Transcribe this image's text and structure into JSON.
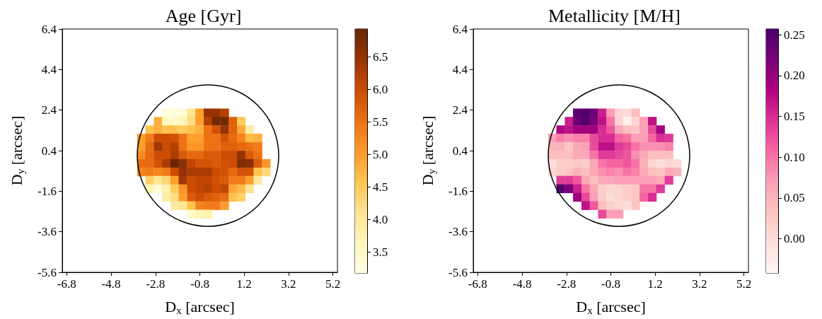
{
  "chart_data": [
    {
      "type": "scatter",
      "title": "Age [Gyr]",
      "xlabel": "D$_{x}$ [arcsec]",
      "ylabel": "D$_{y}$ [arcsec]",
      "marker": "square",
      "xlim": [
        -7.0,
        5.4
      ],
      "ylim": [
        -5.6,
        6.4
      ],
      "xticks": [
        -6.8,
        -4.8,
        -2.8,
        -0.8,
        1.2,
        3.2,
        5.2
      ],
      "yticks": [
        -5.6,
        -3.6,
        -1.6,
        0.4,
        2.4,
        4.4,
        6.4
      ],
      "clim": [
        3.18,
        6.93
      ],
      "cticks": [
        {
          "value": 3.5,
          "label": "3.5"
        },
        {
          "value": 4,
          "label": "4.0"
        },
        {
          "value": 4.5,
          "label": "4.5"
        },
        {
          "value": 5,
          "label": "5.0"
        },
        {
          "value": 5.5,
          "label": "5.5"
        },
        {
          "value": 6,
          "label": "6.0"
        },
        {
          "value": 6.5,
          "label": "6.5"
        }
      ],
      "series": [
        {
          "type": "scatter",
          "x": [
            -2.31,
            -1.93,
            -1.56,
            -1.18,
            -0.81,
            -0.43,
            -0.06,
            0.32,
            -2.68,
            -2.31,
            -1.93,
            -1.56,
            -1.18,
            -0.81,
            -0.43,
            -0.06,
            0.32,
            0.69,
            1.07,
            -3.06,
            -2.68,
            -2.31,
            -1.93,
            -1.56,
            -1.18,
            -0.81,
            -0.43,
            -0.06,
            0.32,
            0.69,
            1.07,
            1.44,
            -3.43,
            -3.06,
            -2.68,
            -2.31,
            -1.93,
            -1.56,
            -1.18,
            -0.81,
            -0.43,
            -0.06,
            0.32,
            0.69,
            1.07,
            1.44,
            1.82,
            -3.43,
            -3.06,
            -2.68,
            -2.31,
            -1.93,
            -1.56,
            -1.18,
            -0.81,
            -0.43,
            -0.06,
            0.32,
            0.69,
            1.07,
            1.44,
            1.82,
            -3.43,
            -3.06,
            -2.68,
            -2.31,
            -1.93,
            -1.56,
            -1.18,
            -0.81,
            -0.43,
            -0.06,
            0.32,
            0.69,
            1.07,
            1.44,
            1.82,
            -3.43,
            -3.06,
            -2.68,
            -2.31,
            -1.93,
            -1.56,
            -1.18,
            -0.81,
            -0.43,
            -0.06,
            0.32,
            0.69,
            1.07,
            1.44,
            1.82,
            2.19,
            -3.43,
            -3.06,
            -2.68,
            -2.31,
            -1.93,
            -1.56,
            -1.18,
            -0.81,
            -0.43,
            -0.06,
            0.32,
            0.69,
            1.07,
            1.44,
            1.82,
            2.19,
            -3.06,
            -2.68,
            -2.31,
            -1.93,
            -1.56,
            -1.18,
            -0.81,
            -0.43,
            -0.06,
            0.32,
            0.69,
            1.07,
            1.44,
            1.82,
            -3.06,
            -2.68,
            -2.31,
            -1.93,
            -1.56,
            -1.18,
            -0.81,
            -0.43,
            -0.06,
            0.32,
            0.69,
            1.07,
            1.44,
            -2.31,
            -1.93,
            -1.56,
            -1.18,
            -0.81,
            -0.43,
            -0.06,
            0.32,
            0.69,
            1.07,
            -1.93,
            -1.56,
            -1.18,
            -0.81,
            -0.43,
            -0.06,
            0.32,
            -1.18,
            -0.81,
            -0.43
          ],
          "values": [
            2.26,
            2.26,
            2.26,
            2.26,
            2.26,
            2.26,
            2.26,
            2.26,
            1.85,
            1.85,
            1.85,
            1.85,
            1.85,
            1.85,
            1.85,
            1.85,
            1.85,
            1.85,
            1.85,
            1.43,
            1.43,
            1.43,
            1.43,
            1.43,
            1.43,
            1.43,
            1.43,
            1.43,
            1.43,
            1.43,
            1.43,
            1.43,
            1.02,
            1.02,
            1.02,
            1.02,
            1.02,
            1.02,
            1.02,
            1.02,
            1.02,
            1.02,
            1.02,
            1.02,
            1.02,
            1.02,
            1.02,
            0.6,
            0.6,
            0.6,
            0.6,
            0.6,
            0.6,
            0.6,
            0.6,
            0.6,
            0.6,
            0.6,
            0.6,
            0.6,
            0.6,
            0.6,
            0.18,
            0.18,
            0.18,
            0.18,
            0.18,
            0.18,
            0.18,
            0.18,
            0.18,
            0.18,
            0.18,
            0.18,
            0.18,
            0.18,
            0.18,
            -0.23,
            -0.23,
            -0.23,
            -0.23,
            -0.23,
            -0.23,
            -0.23,
            -0.23,
            -0.23,
            -0.23,
            -0.23,
            -0.23,
            -0.23,
            -0.23,
            -0.23,
            -0.23,
            -0.65,
            -0.65,
            -0.65,
            -0.65,
            -0.65,
            -0.65,
            -0.65,
            -0.65,
            -0.65,
            -0.65,
            -0.65,
            -0.65,
            -0.65,
            -0.65,
            -0.65,
            -0.65,
            -1.06,
            -1.06,
            -1.06,
            -1.06,
            -1.06,
            -1.06,
            -1.06,
            -1.06,
            -1.06,
            -1.06,
            -1.06,
            -1.06,
            -1.06,
            -1.06,
            -1.48,
            -1.48,
            -1.48,
            -1.48,
            -1.48,
            -1.48,
            -1.48,
            -1.48,
            -1.48,
            -1.48,
            -1.48,
            -1.48,
            -1.48,
            -1.9,
            -1.9,
            -1.9,
            -1.9,
            -1.9,
            -1.9,
            -1.9,
            -1.9,
            -1.9,
            -1.9,
            -2.31,
            -2.31,
            -2.31,
            -2.31,
            -2.31,
            -2.31,
            -2.31,
            -2.73,
            -2.73,
            -2.73
          ],
          "cvalues": [
            3.3,
            3.3,
            3.4,
            4.1,
            5.0,
            6.5,
            6.5,
            6.2,
            4.8,
            3.6,
            3.5,
            3.7,
            4.2,
            5.0,
            6.2,
            6.8,
            6.8,
            5.7,
            4.5,
            4.6,
            4.8,
            4.6,
            4.6,
            4.5,
            4.6,
            4.8,
            5.5,
            5.9,
            6.5,
            5.7,
            4.9,
            3.9,
            5.0,
            5.4,
            6.0,
            6.0,
            5.9,
            5.5,
            5.0,
            5.0,
            5.5,
            5.5,
            5.9,
            5.6,
            5.3,
            4.7,
            4.8,
            5.0,
            5.6,
            6.4,
            6.0,
            6.2,
            5.5,
            5.1,
            5.1,
            5.5,
            5.5,
            5.7,
            5.7,
            5.6,
            5.5,
            5.4,
            5.2,
            5.6,
            6.0,
            6.0,
            6.3,
            5.8,
            5.6,
            5.6,
            5.8,
            5.8,
            6.0,
            6.0,
            6.5,
            5.8,
            5.5,
            5.6,
            5.6,
            5.9,
            6.3,
            6.9,
            6.6,
            6.1,
            5.9,
            5.9,
            5.8,
            5.9,
            6.0,
            6.7,
            6.6,
            5.8,
            5.1,
            5.3,
            5.4,
            5.3,
            5.4,
            6.0,
            6.5,
            6.3,
            6.3,
            6.3,
            6.0,
            5.9,
            5.6,
            5.9,
            5.9,
            4.6,
            4.3,
            4.4,
            4.1,
            4.3,
            5.0,
            6.4,
            6.0,
            6.1,
            6.1,
            5.9,
            5.8,
            5.4,
            5.4,
            5.0,
            3.9,
            3.7,
            3.4,
            3.8,
            4.5,
            5.1,
            6.0,
            6.1,
            6.2,
            6.0,
            6.1,
            4.9,
            4.7,
            4.1,
            3.9,
            4.2,
            5.0,
            5.8,
            6.0,
            5.8,
            5.7,
            5.6,
            4.6,
            4.4,
            3.9,
            4.1,
            4.6,
            5.3,
            5.4,
            5.4,
            5.0,
            3.5,
            3.7,
            3.8
          ]
        }
      ]
    },
    {
      "type": "scatter",
      "title": "Metallicity [M/H]",
      "xlabel": "D$_{x}$ [arcsec]",
      "ylabel": "D$_{y}$ [arcsec]",
      "marker": "square",
      "xlim": [
        -7.0,
        5.4
      ],
      "ylim": [
        -5.6,
        6.4
      ],
      "xticks": [
        -6.8,
        -4.8,
        -2.8,
        -0.8,
        1.2,
        3.2,
        5.2
      ],
      "yticks": [
        -5.6,
        -3.6,
        -1.6,
        0.4,
        2.4,
        4.4,
        6.4
      ],
      "clim": [
        -0.042,
        0.257
      ],
      "cticks": [
        {
          "value": 0,
          "label": "0.00"
        },
        {
          "value": 0.05,
          "label": "0.05"
        },
        {
          "value": 0.1,
          "label": "0.10"
        },
        {
          "value": 0.15,
          "label": "0.15"
        },
        {
          "value": 0.2,
          "label": "0.20"
        },
        {
          "value": 0.25,
          "label": "0.25"
        }
      ],
      "series": [
        {
          "type": "scatter",
          "x": [
            -2.31,
            -1.93,
            -1.56,
            -1.18,
            -0.81,
            -0.43,
            -0.06,
            0.32,
            -2.68,
            -2.31,
            -1.93,
            -1.56,
            -1.18,
            -0.81,
            -0.43,
            -0.06,
            0.32,
            0.69,
            1.07,
            -3.06,
            -2.68,
            -2.31,
            -1.93,
            -1.56,
            -1.18,
            -0.81,
            -0.43,
            -0.06,
            0.32,
            0.69,
            1.07,
            1.44,
            -3.43,
            -3.06,
            -2.68,
            -2.31,
            -1.93,
            -1.56,
            -1.18,
            -0.81,
            -0.43,
            -0.06,
            0.32,
            0.69,
            1.07,
            1.44,
            1.82,
            -3.43,
            -3.06,
            -2.68,
            -2.31,
            -1.93,
            -1.56,
            -1.18,
            -0.81,
            -0.43,
            -0.06,
            0.32,
            0.69,
            1.07,
            1.44,
            1.82,
            -3.43,
            -3.06,
            -2.68,
            -2.31,
            -1.93,
            -1.56,
            -1.18,
            -0.81,
            -0.43,
            -0.06,
            0.32,
            0.69,
            1.07,
            1.44,
            1.82,
            -3.43,
            -3.06,
            -2.68,
            -2.31,
            -1.93,
            -1.56,
            -1.18,
            -0.81,
            -0.43,
            -0.06,
            0.32,
            0.69,
            1.07,
            1.44,
            1.82,
            2.19,
            -3.43,
            -3.06,
            -2.68,
            -2.31,
            -1.93,
            -1.56,
            -1.18,
            -0.81,
            -0.43,
            -0.06,
            0.32,
            0.69,
            1.07,
            1.44,
            1.82,
            2.19,
            -3.06,
            -2.68,
            -2.31,
            -1.93,
            -1.56,
            -1.18,
            -0.81,
            -0.43,
            -0.06,
            0.32,
            0.69,
            1.07,
            1.44,
            1.82,
            -3.06,
            -2.68,
            -2.31,
            -1.93,
            -1.56,
            -1.18,
            -0.81,
            -0.43,
            -0.06,
            0.32,
            0.69,
            1.07,
            1.44,
            -2.31,
            -1.93,
            -1.56,
            -1.18,
            -0.81,
            -0.43,
            -0.06,
            0.32,
            0.69,
            1.07,
            -1.93,
            -1.56,
            -1.18,
            -0.81,
            -0.43,
            -0.06,
            0.32,
            -1.18,
            -0.81,
            -0.43
          ],
          "values": [
            2.26,
            2.26,
            2.26,
            2.26,
            2.26,
            2.26,
            2.26,
            2.26,
            1.85,
            1.85,
            1.85,
            1.85,
            1.85,
            1.85,
            1.85,
            1.85,
            1.85,
            1.85,
            1.85,
            1.43,
            1.43,
            1.43,
            1.43,
            1.43,
            1.43,
            1.43,
            1.43,
            1.43,
            1.43,
            1.43,
            1.43,
            1.43,
            1.02,
            1.02,
            1.02,
            1.02,
            1.02,
            1.02,
            1.02,
            1.02,
            1.02,
            1.02,
            1.02,
            1.02,
            1.02,
            1.02,
            1.02,
            0.6,
            0.6,
            0.6,
            0.6,
            0.6,
            0.6,
            0.6,
            0.6,
            0.6,
            0.6,
            0.6,
            0.6,
            0.6,
            0.6,
            0.6,
            0.18,
            0.18,
            0.18,
            0.18,
            0.18,
            0.18,
            0.18,
            0.18,
            0.18,
            0.18,
            0.18,
            0.18,
            0.18,
            0.18,
            0.18,
            -0.23,
            -0.23,
            -0.23,
            -0.23,
            -0.23,
            -0.23,
            -0.23,
            -0.23,
            -0.23,
            -0.23,
            -0.23,
            -0.23,
            -0.23,
            -0.23,
            -0.23,
            -0.23,
            -0.65,
            -0.65,
            -0.65,
            -0.65,
            -0.65,
            -0.65,
            -0.65,
            -0.65,
            -0.65,
            -0.65,
            -0.65,
            -0.65,
            -0.65,
            -0.65,
            -0.65,
            -0.65,
            -1.06,
            -1.06,
            -1.06,
            -1.06,
            -1.06,
            -1.06,
            -1.06,
            -1.06,
            -1.06,
            -1.06,
            -1.06,
            -1.06,
            -1.06,
            -1.06,
            -1.48,
            -1.48,
            -1.48,
            -1.48,
            -1.48,
            -1.48,
            -1.48,
            -1.48,
            -1.48,
            -1.48,
            -1.48,
            -1.48,
            -1.48,
            -1.9,
            -1.9,
            -1.9,
            -1.9,
            -1.9,
            -1.9,
            -1.9,
            -1.9,
            -1.9,
            -1.9,
            -2.31,
            -2.31,
            -2.31,
            -2.31,
            -2.31,
            -2.31,
            -2.31,
            -2.73,
            -2.73,
            -2.73
          ],
          "cvalues": [
            0.24,
            0.25,
            0.23,
            0.16,
            0.07,
            0.01,
            0.0,
            0.04,
            0.16,
            0.23,
            0.25,
            0.22,
            0.17,
            0.1,
            0.01,
            -0.03,
            0.01,
            0.07,
            0.17,
            0.18,
            0.17,
            0.19,
            0.19,
            0.19,
            0.15,
            0.12,
            0.06,
            0.04,
            0.03,
            0.07,
            0.13,
            0.19,
            0.07,
            0.09,
            0.08,
            0.09,
            0.09,
            0.13,
            0.15,
            0.15,
            0.11,
            0.1,
            0.07,
            0.07,
            0.11,
            0.15,
            0.14,
            0.05,
            0.05,
            0.03,
            0.06,
            0.07,
            0.13,
            0.17,
            0.17,
            0.14,
            0.13,
            0.1,
            0.08,
            0.08,
            0.08,
            0.09,
            0.04,
            0.04,
            0.04,
            0.06,
            0.06,
            0.1,
            0.14,
            0.14,
            0.13,
            0.12,
            0.08,
            0.06,
            0.04,
            0.04,
            0.04,
            0.0,
            0.02,
            0.02,
            0.03,
            0.02,
            0.06,
            0.1,
            0.11,
            0.11,
            0.12,
            0.1,
            0.05,
            0.01,
            0.0,
            0.01,
            0.0,
            0.01,
            0.02,
            0.03,
            0.05,
            0.04,
            0.06,
            0.08,
            0.09,
            0.08,
            0.1,
            0.09,
            0.06,
            0.04,
            0.03,
            0.06,
            0.05,
            0.14,
            0.14,
            0.12,
            0.06,
            0.04,
            0.06,
            0.06,
            0.07,
            0.07,
            0.07,
            0.07,
            0.07,
            0.06,
            0.14,
            0.25,
            0.22,
            0.16,
            0.1,
            0.06,
            0.02,
            0.01,
            0.01,
            0.02,
            0.03,
            0.1,
            0.1,
            0.14,
            0.19,
            0.13,
            0.07,
            0.02,
            0.0,
            0.01,
            0.02,
            0.03,
            0.11,
            0.15,
            0.17,
            0.12,
            0.04,
            0.02,
            0.01,
            0.0,
            0.03,
            0.13,
            0.07,
            0.07
          ]
        }
      ]
    }
  ]
}
